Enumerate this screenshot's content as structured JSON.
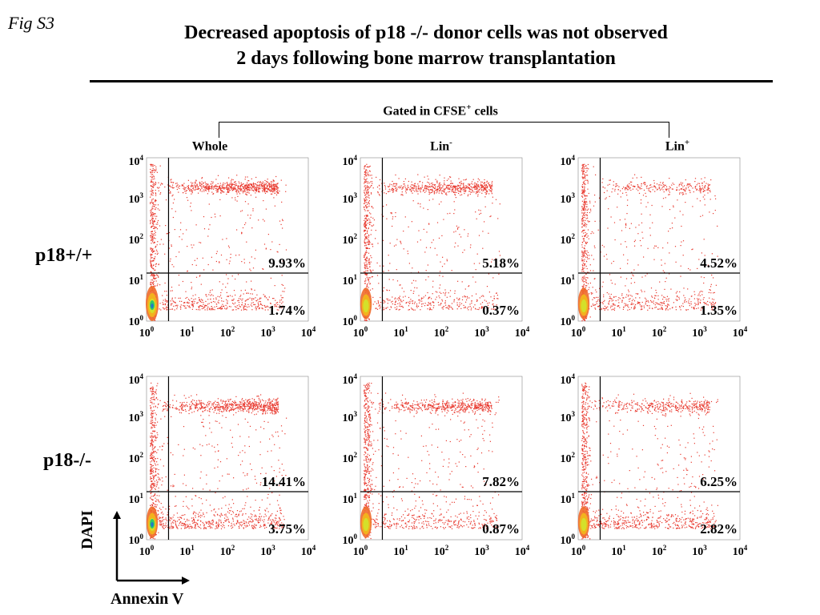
{
  "figure_label": "Fig S3",
  "title_line1": "Decreased apoptosis of p18 -/- donor cells was not observed",
  "title_line2": "2 days following bone marrow transplantation",
  "gate": {
    "text": "Gated in CFSE",
    "sup": "+",
    "suffix": " cells"
  },
  "columns": [
    {
      "base": "Whole",
      "sup": ""
    },
    {
      "base": "Lin",
      "sup": "-"
    },
    {
      "base": "Lin",
      "sup": "+"
    }
  ],
  "rows": [
    "p18+/+",
    "p18-/-"
  ],
  "axis_labels": {
    "y": "DAPI",
    "x": "Annexin V"
  },
  "chart_data": {
    "type": "scatter",
    "subtype": "flow-cytometry-dot-plot",
    "x_scale": "log",
    "y_scale": "log",
    "xlim": [
      1,
      10000
    ],
    "ylim": [
      1,
      10000
    ],
    "x_ticks": [
      {
        "base": "10",
        "exp": "0"
      },
      {
        "base": "10",
        "exp": "1"
      },
      {
        "base": "10",
        "exp": "2"
      },
      {
        "base": "10",
        "exp": "3"
      },
      {
        "base": "10",
        "exp": "4"
      }
    ],
    "y_ticks": [
      {
        "base": "10",
        "exp": "0"
      },
      {
        "base": "10",
        "exp": "1"
      },
      {
        "base": "10",
        "exp": "2"
      },
      {
        "base": "10",
        "exp": "3"
      },
      {
        "base": "10",
        "exp": "4"
      }
    ],
    "gate_x": 3.5,
    "gate_y": 15,
    "dot_color": "#e8392e",
    "density_colors": [
      "#f06a2a",
      "#f2b21e",
      "#d4e02a",
      "#2fc86a",
      "#1f78c8"
    ],
    "panels": [
      {
        "row": "p18+/+",
        "column": "Whole",
        "upper_right_percent": "9.93%",
        "lower_right_percent": "1.74%",
        "upper_cluster_density": 1.0
      },
      {
        "row": "p18+/+",
        "column": "Lin-",
        "upper_right_percent": "5.18%",
        "lower_right_percent": "0.37%",
        "upper_cluster_density": 0.8
      },
      {
        "row": "p18+/+",
        "column": "Lin+",
        "upper_right_percent": "4.52%",
        "lower_right_percent": "1.35%",
        "upper_cluster_density": 0.35
      },
      {
        "row": "p18-/-",
        "column": "Whole",
        "upper_right_percent": "14.41%",
        "lower_right_percent": "3.75%",
        "upper_cluster_density": 1.0
      },
      {
        "row": "p18-/-",
        "column": "Lin-",
        "upper_right_percent": "7.82%",
        "lower_right_percent": "0.87%",
        "upper_cluster_density": 0.75
      },
      {
        "row": "p18-/-",
        "column": "Lin+",
        "upper_right_percent": "6.25%",
        "lower_right_percent": "2.82%",
        "upper_cluster_density": 0.55
      }
    ]
  }
}
